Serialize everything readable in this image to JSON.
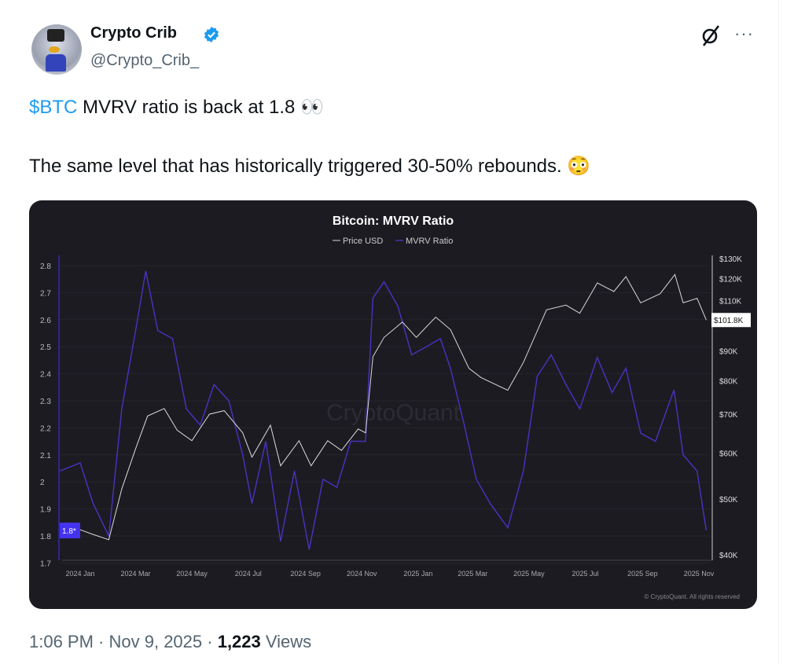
{
  "author": {
    "name": "Crypto Crib",
    "handle": "@Crypto_Crib_",
    "verified": true,
    "badge_color": "#1d9bf0"
  },
  "header_icons": [
    "grok-icon",
    "more-icon"
  ],
  "more_label": "···",
  "tweet": {
    "cashtag": "$BTC",
    "line1_rest": " MVRV ratio is back at 1.8 👀",
    "line2": "The same level that has historically triggered 30-50% rebounds. 😳"
  },
  "footer": {
    "time": "1:06 PM",
    "sep": " · ",
    "date": "Nov 9, 2025",
    "views_count": "1,223",
    "views_label": " Views"
  },
  "chart_data": {
    "type": "line",
    "title": "Bitcoin: MVRV Ratio",
    "legend": [
      "Price USD",
      "MVRV Ratio"
    ],
    "legend_placement": "top",
    "watermark": "CryptoQuant",
    "credit": "© CryptoQuant. All rights reserved",
    "x_ticks": [
      "2024 Jan",
      "2024 Mar",
      "2024 May",
      "2024 Jul",
      "2024 Sep",
      "2024 Nov",
      "2025 Jan",
      "2025 Mar",
      "2025 May",
      "2025 Jul",
      "2025 Sep",
      "2025 Nov"
    ],
    "left_axis": {
      "ticks": [
        "2.8",
        "2.7",
        "2.6",
        "2.5",
        "2.4",
        "2.3",
        "2.2",
        "2.1",
        "2",
        "1.9",
        "1.8",
        "1.7"
      ],
      "range": [
        1.7,
        2.8
      ]
    },
    "right_axis": {
      "scale": "log",
      "ticks": [
        "$130K",
        "$120K",
        "$110K",
        "$90K",
        "$80K",
        "$70K",
        "$60K",
        "$50K",
        "$40K"
      ],
      "range": [
        40000,
        130000
      ]
    },
    "current_labels": {
      "mvrv": "1.8*",
      "price": "$101.8K"
    },
    "colors": {
      "price": "#d9d9d9",
      "mvrv": "#4b32c3",
      "mvrv_label_bg": "#4433ee",
      "background": "#1c1b22"
    },
    "series": [
      {
        "name": "MVRV Ratio",
        "points": [
          [
            "2023-12-10",
            2.04
          ],
          [
            "2024-01-01",
            2.07
          ],
          [
            "2024-01-15",
            1.92
          ],
          [
            "2024-02-01",
            1.8
          ],
          [
            "2024-02-15",
            2.27
          ],
          [
            "2024-03-01",
            2.56
          ],
          [
            "2024-03-12",
            2.78
          ],
          [
            "2024-03-25",
            2.56
          ],
          [
            "2024-04-10",
            2.53
          ],
          [
            "2024-04-25",
            2.27
          ],
          [
            "2024-05-10",
            2.21
          ],
          [
            "2024-05-25",
            2.36
          ],
          [
            "2024-06-10",
            2.3
          ],
          [
            "2024-06-25",
            2.1
          ],
          [
            "2024-07-05",
            1.92
          ],
          [
            "2024-07-20",
            2.15
          ],
          [
            "2024-08-05",
            1.78
          ],
          [
            "2024-08-20",
            2.04
          ],
          [
            "2024-09-05",
            1.75
          ],
          [
            "2024-09-20",
            2.01
          ],
          [
            "2024-10-05",
            1.98
          ],
          [
            "2024-10-20",
            2.15
          ],
          [
            "2024-11-05",
            2.15
          ],
          [
            "2024-11-13",
            2.68
          ],
          [
            "2024-11-25",
            2.74
          ],
          [
            "2024-12-10",
            2.65
          ],
          [
            "2024-12-25",
            2.47
          ],
          [
            "2025-01-10",
            2.5
          ],
          [
            "2025-01-25",
            2.53
          ],
          [
            "2025-02-05",
            2.42
          ],
          [
            "2025-02-20",
            2.21
          ],
          [
            "2025-03-05",
            2.01
          ],
          [
            "2025-03-20",
            1.92
          ],
          [
            "2025-04-08",
            1.83
          ],
          [
            "2025-04-25",
            2.04
          ],
          [
            "2025-05-10",
            2.39
          ],
          [
            "2025-05-25",
            2.47
          ],
          [
            "2025-06-10",
            2.36
          ],
          [
            "2025-06-25",
            2.27
          ],
          [
            "2025-07-14",
            2.46
          ],
          [
            "2025-07-30",
            2.33
          ],
          [
            "2025-08-14",
            2.42
          ],
          [
            "2025-08-30",
            2.18
          ],
          [
            "2025-09-15",
            2.15
          ],
          [
            "2025-10-05",
            2.34
          ],
          [
            "2025-10-15",
            2.1
          ],
          [
            "2025-10-30",
            2.04
          ],
          [
            "2025-11-09",
            1.82
          ]
        ]
      },
      {
        "name": "Price USD",
        "points": [
          [
            "2023-12-10",
            43400
          ],
          [
            "2024-01-01",
            44200
          ],
          [
            "2024-01-15",
            43400
          ],
          [
            "2024-02-01",
            42500
          ],
          [
            "2024-02-15",
            52000
          ],
          [
            "2024-03-01",
            61000
          ],
          [
            "2024-03-14",
            69500
          ],
          [
            "2024-04-01",
            71600
          ],
          [
            "2024-04-15",
            65700
          ],
          [
            "2024-05-01",
            63000
          ],
          [
            "2024-05-20",
            70000
          ],
          [
            "2024-06-05",
            71000
          ],
          [
            "2024-06-25",
            65000
          ],
          [
            "2024-07-05",
            59000
          ],
          [
            "2024-07-25",
            67000
          ],
          [
            "2024-08-05",
            57000
          ],
          [
            "2024-08-25",
            63000
          ],
          [
            "2024-09-07",
            57000
          ],
          [
            "2024-09-25",
            63000
          ],
          [
            "2024-10-10",
            60600
          ],
          [
            "2024-10-28",
            66000
          ],
          [
            "2024-11-05",
            65000
          ],
          [
            "2024-11-13",
            88000
          ],
          [
            "2024-11-25",
            95000
          ],
          [
            "2024-12-15",
            101000
          ],
          [
            "2024-12-30",
            95000
          ],
          [
            "2025-01-20",
            103000
          ],
          [
            "2025-02-05",
            98000
          ],
          [
            "2025-02-25",
            84000
          ],
          [
            "2025-03-10",
            81000
          ],
          [
            "2025-04-08",
            77000
          ],
          [
            "2025-04-25",
            86000
          ],
          [
            "2025-05-20",
            106000
          ],
          [
            "2025-06-10",
            108000
          ],
          [
            "2025-06-25",
            104600
          ],
          [
            "2025-07-14",
            118000
          ],
          [
            "2025-08-01",
            114000
          ],
          [
            "2025-08-14",
            121000
          ],
          [
            "2025-08-30",
            109000
          ],
          [
            "2025-09-20",
            113000
          ],
          [
            "2025-10-06",
            122000
          ],
          [
            "2025-10-15",
            109000
          ],
          [
            "2025-10-30",
            111000
          ],
          [
            "2025-11-09",
            101800
          ]
        ]
      }
    ]
  }
}
